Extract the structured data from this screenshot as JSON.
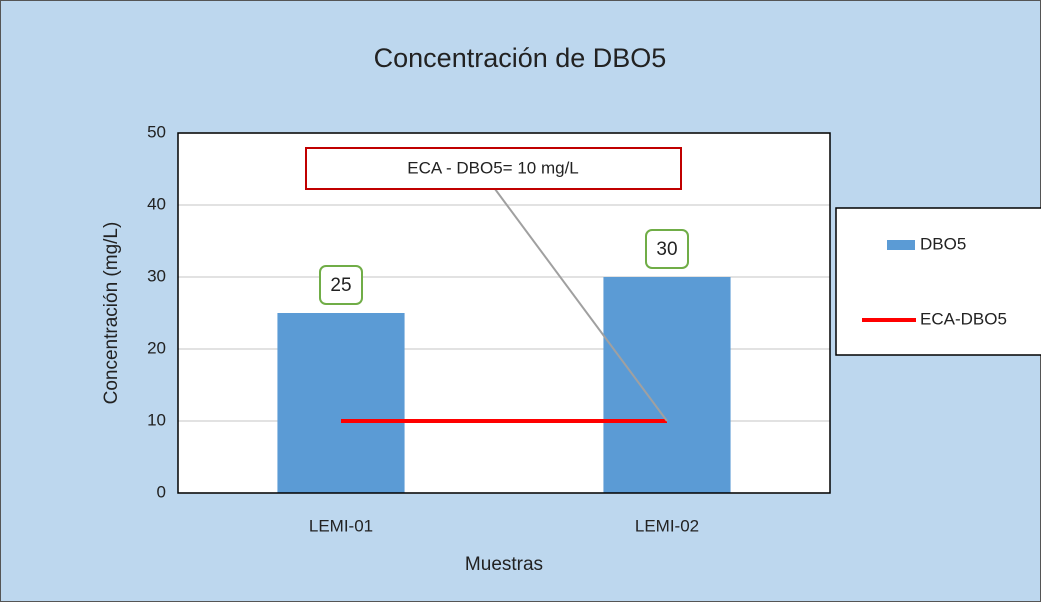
{
  "chart_data": {
    "type": "bar",
    "title": "Concentración de DBO5",
    "y_label": "Concentración (mg/L)",
    "x_label": "Muestras",
    "annotation": "ECA - DBO5= 10 mg/L",
    "categories": [
      "LEMI-01",
      "LEMI-02"
    ],
    "series": [
      {
        "name": "DBO5",
        "type": "bar",
        "color": "#5b9bd5",
        "values": [
          25,
          30
        ]
      },
      {
        "name": "ECA-DBO5",
        "type": "line",
        "color": "#ff0000",
        "values": [
          10,
          10
        ]
      }
    ],
    "ylim": [
      0,
      50
    ],
    "yticks": [
      0,
      10,
      20,
      30,
      40,
      50
    ],
    "grid": true,
    "legend": "right"
  }
}
